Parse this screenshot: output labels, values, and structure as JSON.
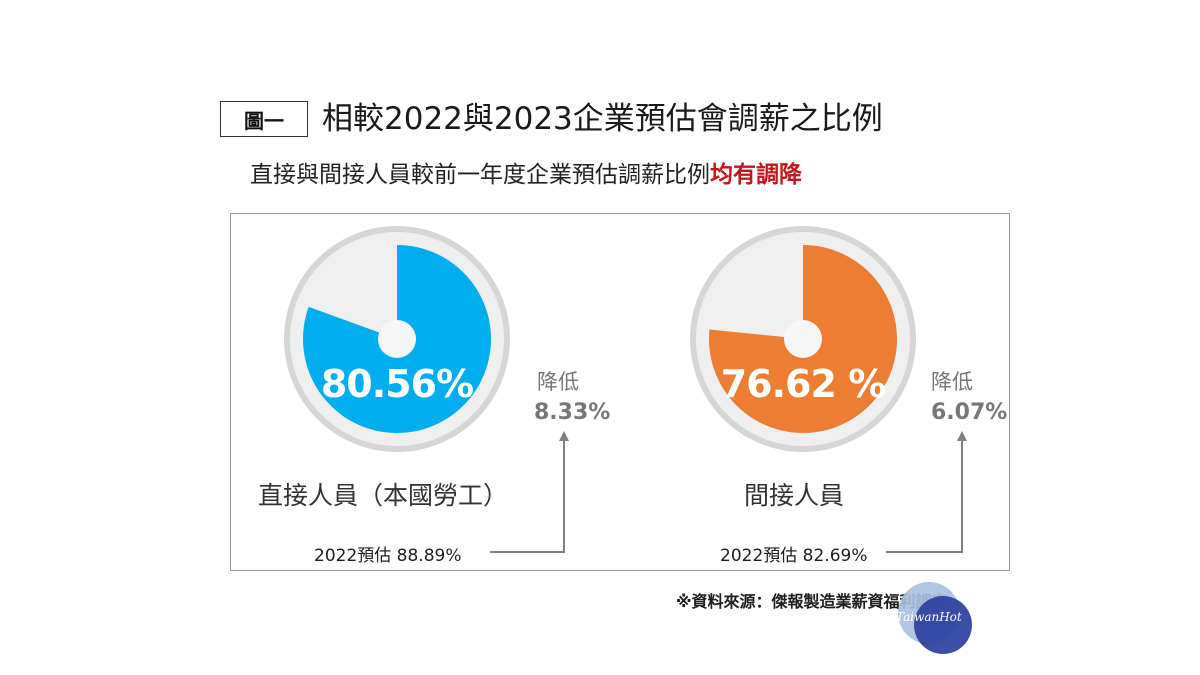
{
  "header": {
    "figure_tag": "圖一",
    "title": "相較2022與2023企業預估會調薪之比例",
    "subtitle_main": "直接與間接人員較前一年度企業預估調薪比例",
    "subtitle_emphasis": "均有調降"
  },
  "colors": {
    "direct": "#00adef",
    "indirect": "#ed7d31",
    "gauge_bg": "#efefef",
    "emphasis": "#c0161c",
    "arrow": "#808080"
  },
  "chart_data": [
    {
      "type": "pie",
      "label": "直接人員（本國勞工）",
      "value_2023_pct": 80.56,
      "value_2023_text": "80.56%",
      "decrease_word": "降低",
      "decrease_text": "8.33%",
      "decrease_pct": 8.33,
      "prev_2022_text": "2022預估 88.89%",
      "prev_2022_pct": 88.89
    },
    {
      "type": "pie",
      "label": "間接人員",
      "value_2023_pct": 76.62,
      "value_2023_text": "76.62 %",
      "decrease_word": "降低",
      "decrease_text": "6.07%",
      "decrease_pct": 6.07,
      "prev_2022_text": "2022預估 82.69%",
      "prev_2022_pct": 82.69
    }
  ],
  "source": "※資料來源：傑報製造業薪資福利調查",
  "watermark": "TaiwanHot"
}
